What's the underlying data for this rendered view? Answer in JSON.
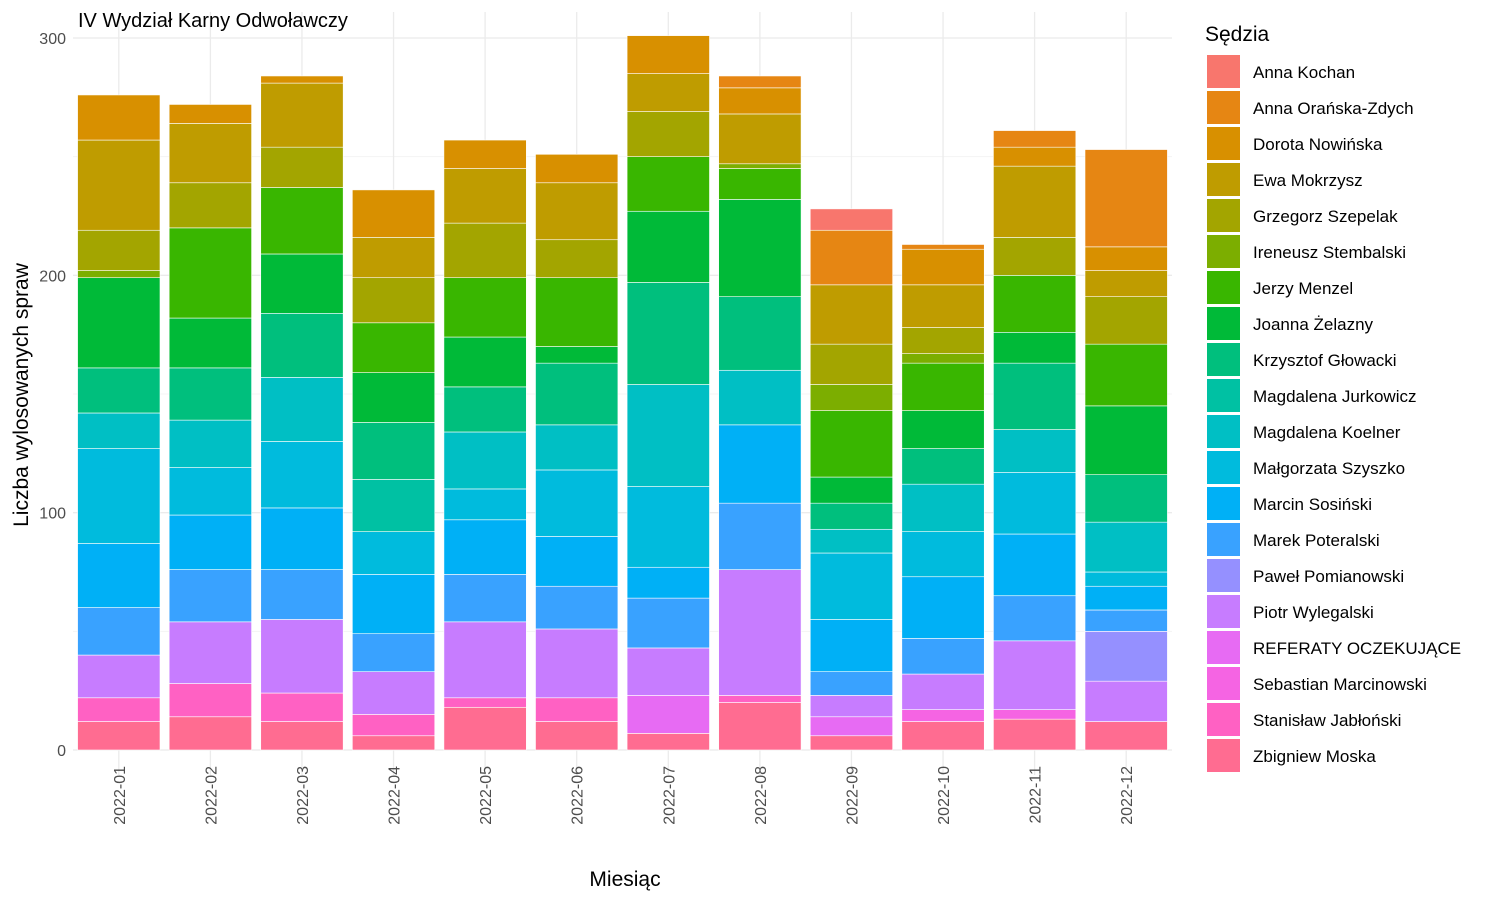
{
  "chart_data": {
    "type": "bar",
    "stacked": true,
    "title": "IV Wydział Karny Odwoławczy",
    "xlabel": "Miesiąc",
    "ylabel": "Liczba wylosowanych spraw",
    "ylim": [
      0,
      300
    ],
    "yticks": [
      0,
      100,
      200,
      300
    ],
    "grid": true,
    "legend_title": "Sędzia",
    "legend_position": "right",
    "categories": [
      "2022-01",
      "2022-02",
      "2022-03",
      "2022-04",
      "2022-05",
      "2022-06",
      "2022-07",
      "2022-08",
      "2022-09",
      "2022-10",
      "2022-11",
      "2022-12"
    ],
    "series": [
      {
        "name": "Zbigniew Moska",
        "color": "#FF6C91",
        "values": [
          12,
          14,
          12,
          6,
          18,
          12,
          7,
          20,
          6,
          12,
          13,
          12
        ]
      },
      {
        "name": "Stanisław Jabłoński",
        "color": "#FF61C3",
        "values": [
          10,
          14,
          12,
          9,
          4,
          10,
          0,
          3,
          0,
          0,
          0,
          0
        ]
      },
      {
        "name": "Sebastian Marcinowski",
        "color": "#F564E3",
        "values": [
          0,
          0,
          0,
          0,
          0,
          0,
          0,
          0,
          0,
          5,
          4,
          0
        ]
      },
      {
        "name": "REFERATY OCZEKUJĄCE",
        "color": "#E76BF3",
        "values": [
          0,
          0,
          0,
          0,
          0,
          0,
          16,
          0,
          8,
          0,
          0,
          0
        ]
      },
      {
        "name": "Piotr Wylegalski",
        "color": "#C77CFF",
        "values": [
          18,
          26,
          31,
          18,
          32,
          29,
          20,
          53,
          9,
          15,
          29,
          17
        ]
      },
      {
        "name": "Paweł Pomianowski",
        "color": "#9590FF",
        "values": [
          0,
          0,
          0,
          0,
          0,
          0,
          0,
          0,
          0,
          0,
          0,
          21
        ]
      },
      {
        "name": "Marek Poteralski",
        "color": "#39A2FF",
        "values": [
          20,
          22,
          21,
          16,
          20,
          18,
          21,
          28,
          10,
          15,
          19,
          9
        ]
      },
      {
        "name": "Marcin Sosiński",
        "color": "#00B0F6",
        "values": [
          27,
          23,
          26,
          25,
          23,
          21,
          13,
          33,
          22,
          26,
          26,
          10
        ]
      },
      {
        "name": "Małgorzata Szyszko",
        "color": "#00BBDD",
        "values": [
          40,
          20,
          28,
          18,
          13,
          28,
          34,
          0,
          28,
          19,
          26,
          6
        ]
      },
      {
        "name": "Magdalena Koelner",
        "color": "#00BFC4",
        "values": [
          15,
          20,
          27,
          0,
          24,
          19,
          43,
          23,
          10,
          20,
          18,
          21
        ]
      },
      {
        "name": "Magdalena Jurkowicz",
        "color": "#00C1A3",
        "values": [
          0,
          0,
          0,
          22,
          0,
          0,
          0,
          0,
          0,
          0,
          0,
          0
        ]
      },
      {
        "name": "Krzysztof Głowacki",
        "color": "#00BF7D",
        "values": [
          19,
          22,
          27,
          24,
          19,
          26,
          43,
          31,
          11,
          15,
          28,
          20
        ]
      },
      {
        "name": "Joanna Żelazny",
        "color": "#00BA38",
        "values": [
          38,
          21,
          25,
          21,
          21,
          7,
          30,
          41,
          11,
          16,
          13,
          29
        ]
      },
      {
        "name": "Jerzy Menzel",
        "color": "#39B600",
        "values": [
          0,
          38,
          28,
          21,
          25,
          29,
          23,
          13,
          28,
          20,
          24,
          26
        ]
      },
      {
        "name": "Ireneusz Stembalski",
        "color": "#7CAE00",
        "values": [
          3,
          0,
          0,
          0,
          0,
          0,
          0,
          2,
          11,
          4,
          0,
          0
        ]
      },
      {
        "name": "Grzegorz Szepelak",
        "color": "#A3A500",
        "values": [
          17,
          19,
          17,
          19,
          23,
          16,
          19,
          0,
          17,
          11,
          16,
          20
        ]
      },
      {
        "name": "Ewa Mokrzysz",
        "color": "#BF9C00",
        "values": [
          38,
          25,
          27,
          17,
          23,
          24,
          16,
          21,
          25,
          18,
          30,
          11
        ]
      },
      {
        "name": "Dorota Nowińska",
        "color": "#D89000",
        "values": [
          19,
          8,
          3,
          20,
          12,
          12,
          16,
          11,
          0,
          15,
          8,
          10
        ]
      },
      {
        "name": "Anna Orańska-Zdych",
        "color": "#E68613",
        "values": [
          0,
          0,
          0,
          0,
          0,
          0,
          0,
          5,
          23,
          2,
          7,
          41
        ]
      },
      {
        "name": "Anna Kochan",
        "color": "#F8766D",
        "values": [
          0,
          0,
          0,
          0,
          0,
          0,
          0,
          0,
          9,
          0,
          0,
          0
        ]
      }
    ],
    "legend_order": [
      "Anna Kochan",
      "Anna Orańska-Zdych",
      "Dorota Nowińska",
      "Ewa Mokrzysz",
      "Grzegorz Szepelak",
      "Ireneusz Stembalski",
      "Jerzy Menzel",
      "Joanna Żelazny",
      "Krzysztof Głowacki",
      "Magdalena Jurkowicz",
      "Magdalena Koelner",
      "Małgorzata Szyszko",
      "Marcin Sosiński",
      "Marek Poteralski",
      "Paweł Pomianowski",
      "Piotr Wylegalski",
      "REFERATY OCZEKUJĄCE",
      "Sebastian Marcinowski",
      "Stanisław Jabłoński",
      "Zbigniew Moska"
    ]
  }
}
